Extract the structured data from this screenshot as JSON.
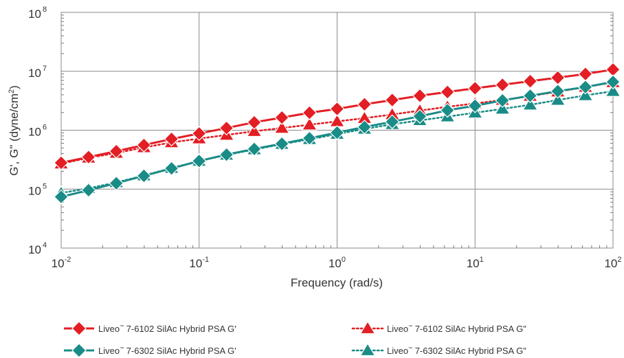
{
  "chart_data": {
    "type": "line",
    "xscale": "log",
    "yscale": "log",
    "xlim": [
      0.01,
      100
    ],
    "ylim": [
      10000,
      100000000
    ],
    "grid": true,
    "legend_position": "bottom",
    "xlabel": "Frequency (rad/s)",
    "ylabel_parts": {
      "prefix": "G', G\" (dyne/cm",
      "sup": "2",
      "suffix": ")"
    },
    "x_ticks": [
      {
        "base": "10",
        "exp": "-2"
      },
      {
        "base": "10",
        "exp": "-1"
      },
      {
        "base": "10",
        "exp": "0"
      },
      {
        "base": "10",
        "exp": "1"
      },
      {
        "base": "10",
        "exp": "2"
      }
    ],
    "y_ticks": [
      {
        "base": "10",
        "exp": "4"
      },
      {
        "base": "10",
        "exp": "5"
      },
      {
        "base": "10",
        "exp": "6"
      },
      {
        "base": "10",
        "exp": "7"
      },
      {
        "base": "10",
        "exp": "8"
      }
    ],
    "x": [
      0.01,
      0.0158,
      0.0251,
      0.0398,
      0.0631,
      0.1,
      0.158,
      0.251,
      0.398,
      0.631,
      1,
      1.58,
      2.51,
      3.98,
      6.31,
      10,
      15.8,
      25.1,
      39.8,
      63.1,
      100
    ],
    "series": [
      {
        "name": "Liveo 7-6102 SilAc Hybrid PSA G'",
        "legend": {
          "brand": "Liveo",
          "mark": "™",
          "rest": " 7-6102 SilAc Hybrid PSA G'"
        },
        "color": "#e31e24",
        "marker": "diamond",
        "line": "solid",
        "values": [
          280000,
          350000,
          440000,
          560000,
          710000,
          880000,
          1090000,
          1360000,
          1640000,
          1980000,
          2300000,
          2750000,
          3250000,
          3850000,
          4450000,
          5150000,
          5900000,
          6800000,
          7800000,
          9000000,
          10700000
        ]
      },
      {
        "name": "Liveo 7-6102 SilAc Hybrid PSA G\"",
        "legend": {
          "brand": "Liveo",
          "mark": "™",
          "rest": " 7-6102 SilAc Hybrid PSA G\""
        },
        "color": "#e31e24",
        "marker": "triangle",
        "line": "dotted",
        "values": [
          270000,
          340000,
          410000,
          510000,
          620000,
          720000,
          830000,
          960000,
          1090000,
          1240000,
          1410000,
          1600000,
          1850000,
          2150000,
          2500000,
          2850000,
          3250000,
          3800000,
          4500000,
          5400000,
          6500000
        ]
      },
      {
        "name": "Liveo 7-6302 SilAc Hybrid PSA G'",
        "legend": {
          "brand": "Liveo",
          "mark": "™",
          "rest": " 7-6302 SilAc Hybrid PSA G'"
        },
        "color": "#1a8c87",
        "marker": "diamond",
        "line": "solid",
        "values": [
          74000,
          96000,
          126000,
          168000,
          225000,
          300000,
          385000,
          480000,
          590000,
          730000,
          910000,
          1130000,
          1390000,
          1720000,
          2180000,
          2600000,
          3200000,
          3850000,
          4600000,
          5400000,
          6600000
        ]
      },
      {
        "name": "Liveo 7-6302 SilAc Hybrid PSA G\"",
        "legend": {
          "brand": "Liveo",
          "mark": "™",
          "rest": " 7-6302 SilAc Hybrid PSA G\""
        },
        "color": "#1a8c87",
        "marker": "triangle",
        "line": "dotted",
        "values": [
          86000,
          103000,
          130000,
          170000,
          228000,
          300000,
          380000,
          470000,
          580000,
          700000,
          860000,
          1050000,
          1260000,
          1470000,
          1700000,
          1980000,
          2300000,
          2700000,
          3250000,
          3900000,
          4600000
        ]
      }
    ]
  }
}
